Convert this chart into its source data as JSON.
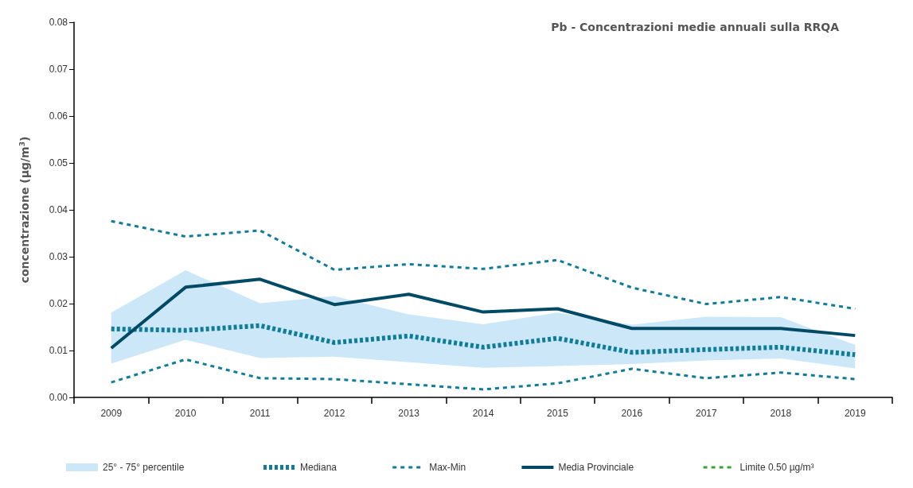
{
  "chart_data": {
    "type": "line",
    "title": "Pb - Concentrazioni medie annuali sulla RRQA",
    "ylabel": "concentrazione (µg/m$^{3}$)",
    "categories": [
      "2009",
      "2010",
      "2011",
      "2012",
      "2013",
      "2014",
      "2015",
      "2016",
      "2017",
      "2018",
      "2019"
    ],
    "series": [
      {
        "name": "25° - 75° percentile",
        "type": "area",
        "color": "#cce8f8",
        "values": [
          null,
          null,
          null,
          null,
          null,
          null,
          null,
          null,
          null,
          null,
          null
        ],
        "lower": [
          0.0072,
          0.0123,
          0.0084,
          0.0087,
          0.0075,
          0.0063,
          0.0067,
          0.0071,
          0.0079,
          0.0083,
          0.0062
        ],
        "upper": [
          0.0181,
          0.0271,
          0.0201,
          0.0216,
          0.0177,
          0.0156,
          0.0181,
          0.0155,
          0.0172,
          0.0171,
          0.0112
        ]
      },
      {
        "name": "Mediana",
        "color": "#0f7c9a",
        "line_style": "dotted",
        "values": [
          0.0146,
          0.0143,
          0.0153,
          0.0117,
          0.0131,
          0.0107,
          0.0126,
          0.0096,
          0.0102,
          0.0107,
          0.0091
        ]
      },
      {
        "name": "Max-Min",
        "color": "#0f7c9a",
        "line_style": "dashed",
        "values": [
          0.0376,
          0.0343,
          0.0356,
          0.0272,
          0.0284,
          0.0274,
          0.0293,
          0.0234,
          0.0199,
          0.0214,
          0.0189
        ]
      },
      {
        "color": "#0f7c9a",
        "line_style": "dashed",
        "values": [
          0.0032,
          0.0081,
          0.0041,
          0.0039,
          0.0028,
          0.0017,
          0.003,
          0.0061,
          0.0041,
          0.0053,
          0.0039
        ]
      },
      {
        "name": "Media Provinciale",
        "color": "#004a66",
        "line_style": "solid",
        "values": [
          0.0105,
          0.0235,
          0.0252,
          0.0198,
          0.022,
          0.0182,
          0.0189,
          0.0147,
          0.0147,
          0.0147,
          0.0132
        ]
      },
      {
        "name": "Limite 0.50 µg/m³",
        "color": "#3aa335",
        "line_style": "dashed",
        "values": [
          null,
          null,
          null,
          null,
          null,
          null,
          null,
          null,
          null,
          null,
          null
        ]
      }
    ],
    "ylim": [
      0,
      0.08
    ],
    "yticks": [
      {
        "value": 0,
        "label": "0.00"
      },
      {
        "value": 0.01,
        "label": "0.01"
      },
      {
        "value": 0.02,
        "label": "0.02"
      },
      {
        "value": 0.03,
        "label": "0.03"
      },
      {
        "value": 0.04,
        "label": "0.04"
      },
      {
        "value": 0.05,
        "label": "0.05"
      },
      {
        "value": 0.06,
        "label": "0.06"
      },
      {
        "value": 0.07,
        "label": "0.07"
      },
      {
        "value": 0.08,
        "label": "0.08"
      }
    ],
    "grid": false,
    "legend": "bottom",
    "marker": "none"
  }
}
